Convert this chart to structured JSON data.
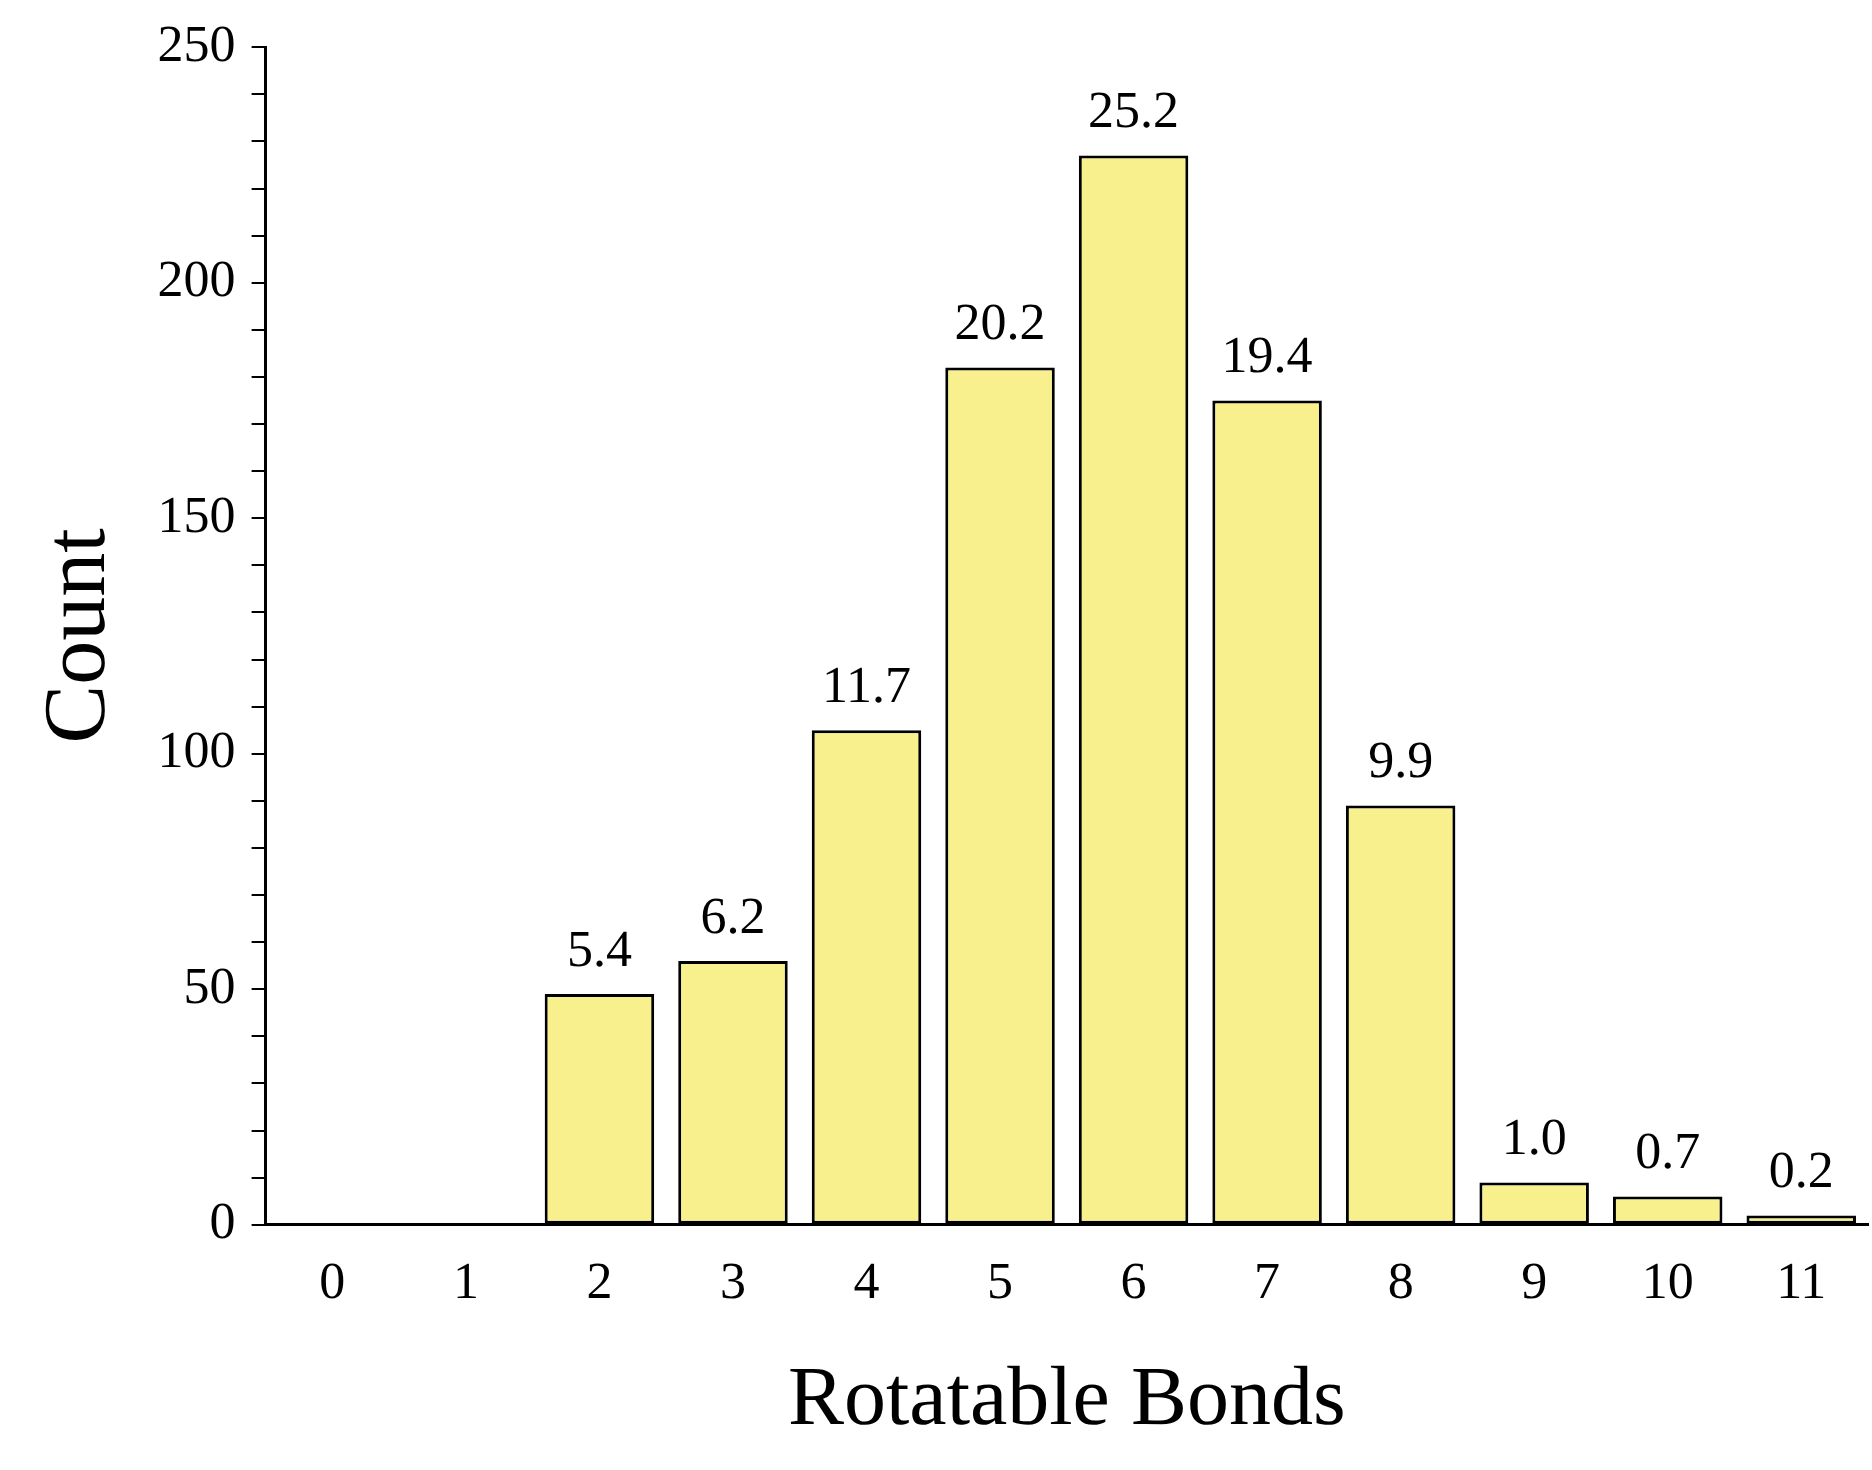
{
  "chart_data": {
    "type": "bar",
    "xlabel": "Rotatable Bonds",
    "ylabel": "Count",
    "categories": [
      "0",
      "1",
      "2",
      "3",
      "4",
      "5",
      "6",
      "7",
      "8",
      "9",
      "10",
      "11"
    ],
    "values": [
      0,
      0,
      49,
      56,
      105,
      182,
      227,
      175,
      89,
      9,
      6,
      2
    ],
    "annotations": [
      {
        "text": "5.4",
        "x": "2",
        "y": 49
      },
      {
        "text": "6.2",
        "x": "3",
        "y": 56
      },
      {
        "text": "11.7",
        "x": "4",
        "y": 105
      },
      {
        "text": "20.2",
        "x": "5",
        "y": 182
      },
      {
        "text": "25.2",
        "x": "6",
        "y": 227
      },
      {
        "text": "19.4",
        "x": "7",
        "y": 175
      },
      {
        "text": "9.9",
        "x": "8",
        "y": 89
      },
      {
        "text": "1.0",
        "x": "9",
        "y": 9
      },
      {
        "text": "0.7",
        "x": "10",
        "y": 6
      },
      {
        "text": "0.2",
        "x": "11",
        "y": 2
      }
    ],
    "color": "#f7f08c",
    "ylim": [
      0,
      250
    ],
    "yticks": [
      0,
      {
        "value": 10,
        "label": null
      },
      {
        "value": 20,
        "label": null
      },
      {
        "value": 30,
        "label": null
      },
      {
        "value": 40,
        "label": null
      },
      50,
      {
        "value": 60,
        "label": null
      },
      {
        "value": 70,
        "label": null
      },
      {
        "value": 80,
        "label": null
      },
      {
        "value": 90,
        "label": null
      },
      100,
      {
        "value": 110,
        "label": null
      },
      {
        "value": 120,
        "label": null
      },
      {
        "value": 130,
        "label": null
      },
      {
        "value": 140,
        "label": null
      },
      150,
      {
        "value": 160,
        "label": null
      },
      {
        "value": 170,
        "label": null
      },
      {
        "value": 180,
        "label": null
      },
      {
        "value": 190,
        "label": null
      },
      200,
      {
        "value": 210,
        "label": null
      },
      {
        "value": 220,
        "label": null
      },
      {
        "value": 230,
        "label": null
      },
      {
        "value": 240,
        "label": null
      },
      250
    ],
    "grid": false,
    "legend": false
  }
}
